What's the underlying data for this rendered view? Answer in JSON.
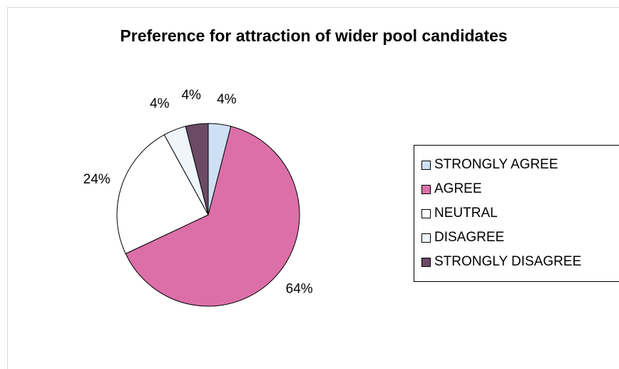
{
  "chart_data": {
    "type": "pie",
    "title": "Preference for attraction of wider pool candidates",
    "categories": [
      "STRONGLY AGREE",
      "AGREE",
      "NEUTRAL",
      "DISAGREE",
      "STRONGLY DISAGREE"
    ],
    "values": [
      4,
      64,
      24,
      4,
      4
    ],
    "labels": [
      "4%",
      "64%",
      "24%",
      "4%",
      "4%"
    ],
    "colors": [
      "#cfe0f5",
      "#dc6fa8",
      "#ffffff",
      "#eef6fb",
      "#6b4a66"
    ],
    "legend_position": "right"
  }
}
